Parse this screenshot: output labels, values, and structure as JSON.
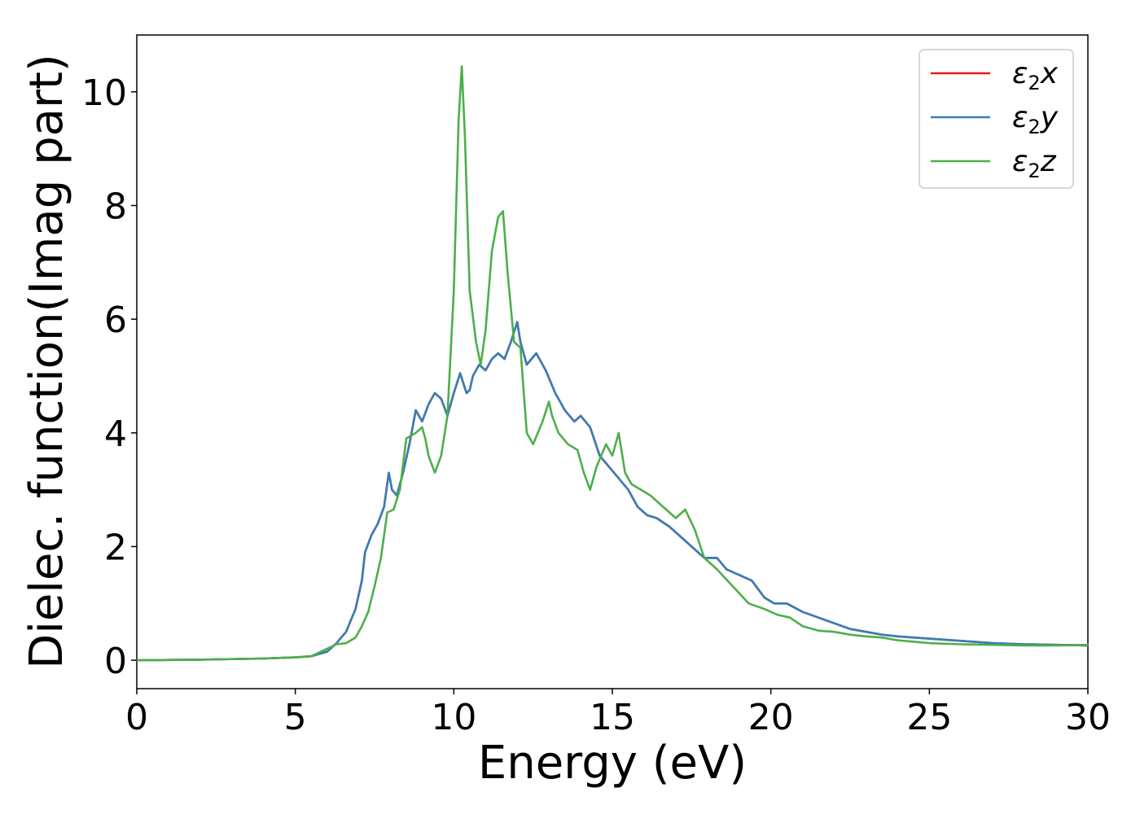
{
  "chart_data": {
    "type": "line",
    "title": "",
    "xlabel": "Energy (eV)",
    "ylabel": "Dielec. function(Imag part)",
    "xlim": [
      0,
      30
    ],
    "ylim": [
      -0.5,
      11
    ],
    "xticks": [
      "0",
      "5",
      "10",
      "15",
      "20",
      "25",
      "30"
    ],
    "yticks": [
      "0",
      "2",
      "4",
      "6",
      "8",
      "10"
    ],
    "grid": false,
    "legend_position": "top-right",
    "colors": {
      "x": "#e41a1c",
      "y": "#377eb8",
      "z": "#4daf4a"
    },
    "legend": [
      {
        "key": "x",
        "symbol": "ε",
        "sub": "2",
        "axis": "x"
      },
      {
        "key": "y",
        "symbol": "ε",
        "sub": "2",
        "axis": "y"
      },
      {
        "key": "z",
        "symbol": "ε",
        "sub": "2",
        "axis": "z"
      }
    ],
    "series": [
      {
        "key": "x",
        "x": [
          0,
          2,
          4,
          5,
          5.5,
          6,
          6.3,
          6.6,
          6.9,
          7.1,
          7.2,
          7.4,
          7.6,
          7.8,
          7.95,
          8.05,
          8.2,
          8.4,
          8.6,
          8.8,
          9.0,
          9.2,
          9.4,
          9.6,
          9.8,
          10.0,
          10.2,
          10.4,
          10.5,
          10.6,
          10.8,
          11.0,
          11.2,
          11.4,
          11.6,
          11.8,
          12.0,
          12.1,
          12.3,
          12.6,
          12.9,
          13.2,
          13.5,
          13.8,
          14.0,
          14.3,
          14.6,
          14.9,
          15.2,
          15.5,
          15.8,
          16.1,
          16.4,
          16.8,
          17.1,
          17.5,
          17.9,
          18.3,
          18.6,
          19.0,
          19.4,
          19.8,
          20.1,
          20.5,
          21.0,
          21.5,
          22.0,
          22.5,
          23.0,
          23.5,
          24.0,
          25.0,
          26.0,
          27.0,
          28.0,
          29.0,
          30.0
        ],
        "y": [
          0.0,
          0.01,
          0.03,
          0.05,
          0.07,
          0.15,
          0.3,
          0.5,
          0.9,
          1.4,
          1.9,
          2.2,
          2.4,
          2.7,
          3.3,
          3.0,
          2.9,
          3.3,
          3.8,
          4.4,
          4.2,
          4.5,
          4.7,
          4.6,
          4.3,
          4.7,
          5.05,
          4.7,
          4.75,
          5.0,
          5.2,
          5.1,
          5.3,
          5.4,
          5.3,
          5.6,
          5.95,
          5.6,
          5.2,
          5.4,
          5.1,
          4.7,
          4.4,
          4.2,
          4.3,
          4.1,
          3.6,
          3.4,
          3.2,
          3.0,
          2.7,
          2.55,
          2.5,
          2.35,
          2.2,
          2.0,
          1.8,
          1.8,
          1.6,
          1.5,
          1.4,
          1.1,
          1.0,
          1.0,
          0.85,
          0.75,
          0.65,
          0.55,
          0.5,
          0.45,
          0.42,
          0.38,
          0.34,
          0.3,
          0.28,
          0.27,
          0.26
        ]
      },
      {
        "key": "y",
        "x": [
          0,
          2,
          4,
          5,
          5.5,
          6,
          6.3,
          6.6,
          6.9,
          7.1,
          7.2,
          7.4,
          7.6,
          7.8,
          7.95,
          8.05,
          8.2,
          8.4,
          8.6,
          8.8,
          9.0,
          9.2,
          9.4,
          9.6,
          9.8,
          10.0,
          10.2,
          10.4,
          10.5,
          10.6,
          10.8,
          11.0,
          11.2,
          11.4,
          11.6,
          11.8,
          12.0,
          12.1,
          12.3,
          12.6,
          12.9,
          13.2,
          13.5,
          13.8,
          14.0,
          14.3,
          14.6,
          14.9,
          15.2,
          15.5,
          15.8,
          16.1,
          16.4,
          16.8,
          17.1,
          17.5,
          17.9,
          18.3,
          18.6,
          19.0,
          19.4,
          19.8,
          20.1,
          20.5,
          21.0,
          21.5,
          22.0,
          22.5,
          23.0,
          23.5,
          24.0,
          25.0,
          26.0,
          27.0,
          28.0,
          29.0,
          30.0
        ],
        "y": [
          0.0,
          0.01,
          0.03,
          0.05,
          0.07,
          0.15,
          0.3,
          0.5,
          0.9,
          1.4,
          1.9,
          2.2,
          2.4,
          2.7,
          3.3,
          3.0,
          2.9,
          3.3,
          3.8,
          4.4,
          4.2,
          4.5,
          4.7,
          4.6,
          4.3,
          4.7,
          5.05,
          4.7,
          4.75,
          5.0,
          5.2,
          5.1,
          5.3,
          5.4,
          5.3,
          5.6,
          5.95,
          5.6,
          5.2,
          5.4,
          5.1,
          4.7,
          4.4,
          4.2,
          4.3,
          4.1,
          3.6,
          3.4,
          3.2,
          3.0,
          2.7,
          2.55,
          2.5,
          2.35,
          2.2,
          2.0,
          1.8,
          1.8,
          1.6,
          1.5,
          1.4,
          1.1,
          1.0,
          1.0,
          0.85,
          0.75,
          0.65,
          0.55,
          0.5,
          0.45,
          0.42,
          0.38,
          0.34,
          0.3,
          0.28,
          0.27,
          0.26
        ]
      },
      {
        "key": "z",
        "x": [
          0,
          2,
          4,
          5,
          5.5,
          6,
          6.3,
          6.6,
          6.9,
          7.1,
          7.3,
          7.5,
          7.7,
          7.9,
          8.1,
          8.3,
          8.5,
          8.8,
          9.0,
          9.1,
          9.2,
          9.4,
          9.6,
          9.8,
          10.0,
          10.15,
          10.25,
          10.35,
          10.5,
          10.7,
          10.85,
          11.0,
          11.2,
          11.4,
          11.55,
          11.7,
          11.9,
          12.1,
          12.3,
          12.5,
          12.8,
          13.0,
          13.1,
          13.3,
          13.6,
          13.9,
          14.1,
          14.3,
          14.5,
          14.8,
          15.0,
          15.2,
          15.4,
          15.6,
          15.9,
          16.2,
          16.6,
          17.0,
          17.3,
          17.6,
          17.9,
          18.3,
          18.8,
          19.3,
          19.8,
          20.2,
          20.6,
          21.0,
          21.5,
          22.0,
          22.5,
          23.0,
          23.5,
          24.0,
          25.0,
          26.0,
          27.0,
          28.0,
          29.0,
          30.0
        ],
        "y": [
          0.0,
          0.01,
          0.03,
          0.05,
          0.07,
          0.2,
          0.28,
          0.3,
          0.4,
          0.6,
          0.85,
          1.3,
          1.8,
          2.6,
          2.65,
          3.0,
          3.9,
          4.0,
          4.1,
          3.9,
          3.6,
          3.3,
          3.6,
          4.3,
          6.5,
          9.5,
          10.45,
          9.2,
          6.5,
          5.6,
          5.2,
          5.8,
          7.2,
          7.8,
          7.9,
          6.8,
          5.6,
          5.5,
          4.0,
          3.8,
          4.2,
          4.55,
          4.3,
          4.0,
          3.8,
          3.7,
          3.3,
          3.0,
          3.4,
          3.8,
          3.6,
          4.0,
          3.3,
          3.1,
          3.0,
          2.9,
          2.7,
          2.5,
          2.65,
          2.3,
          1.8,
          1.6,
          1.3,
          1.0,
          0.9,
          0.8,
          0.75,
          0.6,
          0.52,
          0.5,
          0.45,
          0.42,
          0.4,
          0.35,
          0.3,
          0.28,
          0.27,
          0.26,
          0.26,
          0.27
        ]
      }
    ]
  }
}
